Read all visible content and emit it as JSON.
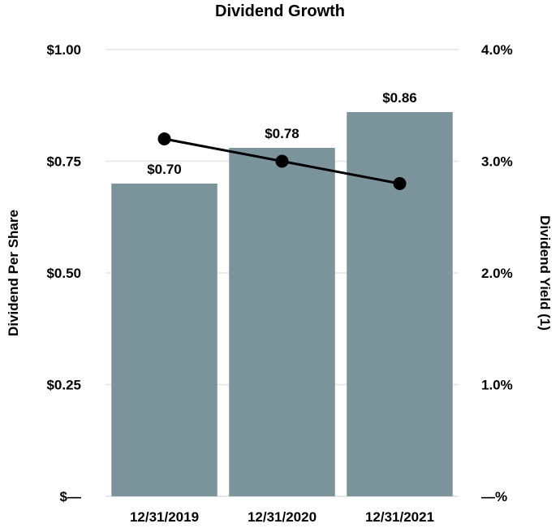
{
  "chart_data": {
    "type": "bar",
    "title": "Dividend Growth",
    "categories": [
      "12/31/2019",
      "12/31/2020",
      "12/31/2021"
    ],
    "series": [
      {
        "name": "Dividend Per Share",
        "type": "bar",
        "axis": "left",
        "values": [
          0.7,
          0.78,
          0.86
        ],
        "labels": [
          "$0.70",
          "$0.78",
          "$0.86"
        ],
        "color": "#7b939b"
      },
      {
        "name": "Dividend Yield (1)",
        "type": "line",
        "axis": "right",
        "values": [
          3.2,
          3.0,
          2.8
        ],
        "color": "#000000"
      }
    ],
    "ylabel": "Dividend Per Share",
    "ylabel_right": "Dividend Yield (1)",
    "ylim": [
      0,
      1.0
    ],
    "ylim_right": [
      0,
      4.0
    ],
    "yticks": [
      0,
      0.25,
      0.5,
      0.75,
      1.0
    ],
    "ytick_labels": [
      "$—",
      "$0.25",
      "$0.50",
      "$0.75",
      "$1.00"
    ],
    "yticks_right": [
      0,
      1,
      2,
      3,
      4
    ],
    "ytick_labels_right": [
      "—%",
      "1.0%",
      "2.0%",
      "3.0%",
      "4.0%"
    ],
    "grid": true,
    "legend": "none"
  }
}
